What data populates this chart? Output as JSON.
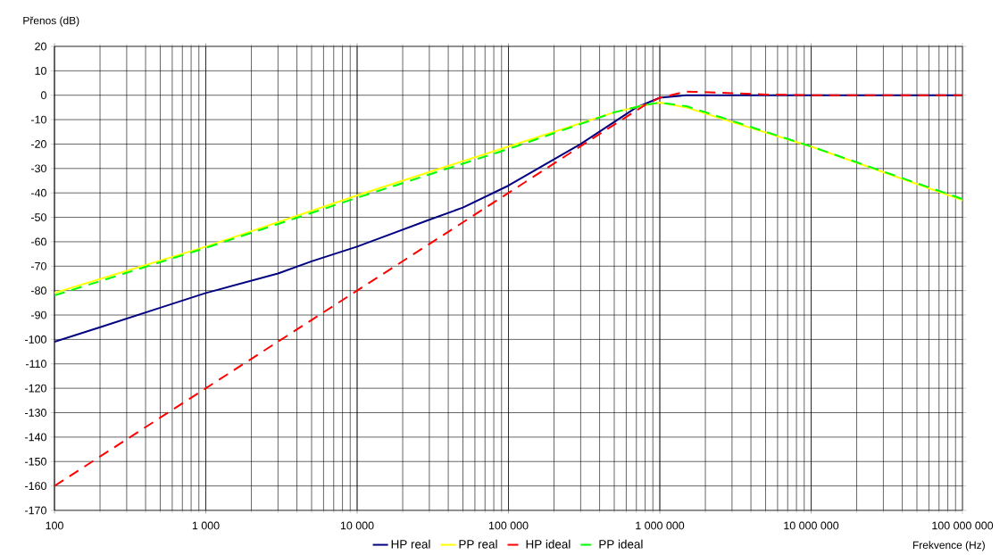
{
  "chart_data": {
    "type": "line",
    "xlabel": "Frekvence (Hz)",
    "ylabel": "Přenos (dB)",
    "log": "x",
    "grid": true,
    "legend": "bottom",
    "xlim": [
      100,
      100000000
    ],
    "ylim": [
      -170,
      20
    ],
    "xticks": [
      {
        "value": 100,
        "label": "100"
      },
      {
        "value": 1000,
        "label": "1 000"
      },
      {
        "value": 10000,
        "label": "10 000"
      },
      {
        "value": 100000,
        "label": "100 000"
      },
      {
        "value": 1000000,
        "label": "1 000 000"
      },
      {
        "value": 10000000,
        "label": "10 000 000"
      },
      {
        "value": 100000000,
        "label": "100 000 000"
      }
    ],
    "yticks": [
      -170,
      -160,
      -150,
      -140,
      -130,
      -120,
      -110,
      -100,
      -90,
      -80,
      -70,
      -60,
      -50,
      -40,
      -30,
      -20,
      -10,
      0,
      10,
      20
    ],
    "series": [
      {
        "name": "HP real",
        "color": "#000080",
        "line_style": "solid",
        "x": [
          100,
          200,
          500,
          1000,
          3000,
          5000,
          10000,
          30000,
          50000,
          100000,
          300000,
          700000,
          1000000,
          1500000,
          10000000,
          100000000
        ],
        "values": [
          -101,
          -95,
          -87,
          -81,
          -73,
          -68,
          -62,
          -51,
          -46,
          -37,
          -20,
          -5,
          -1,
          0,
          0,
          0
        ]
      },
      {
        "name": "PP real",
        "color": "#ffff00",
        "line_style": "solid",
        "x": [
          100,
          1000,
          10000,
          100000,
          500000,
          800000,
          1000000,
          1500000,
          3000000,
          10000000,
          100000000
        ],
        "values": [
          -81,
          -62,
          -41,
          -21,
          -7,
          -4,
          -3,
          -5,
          -11,
          -21,
          -43
        ]
      },
      {
        "name": "HP ideal",
        "color": "#ff0000",
        "line_style": "dashed",
        "x": [
          100,
          1000,
          10000,
          100000,
          500000,
          800000,
          1000000,
          1500000,
          2500000,
          5000000,
          10000000,
          100000000
        ],
        "values": [
          -160,
          -120,
          -80,
          -40,
          -12,
          -4,
          -1,
          1.5,
          1,
          0.3,
          0,
          0
        ]
      },
      {
        "name": "PP ideal",
        "color": "#00ff00",
        "line_style": "dashed",
        "x": [
          100,
          1000,
          10000,
          100000,
          500000,
          800000,
          1000000,
          1500000,
          3000000,
          10000000,
          100000000
        ],
        "values": [
          -82,
          -62.5,
          -42,
          -22,
          -7,
          -4,
          -3,
          -4.5,
          -10.5,
          -21,
          -42.5
        ]
      }
    ]
  }
}
